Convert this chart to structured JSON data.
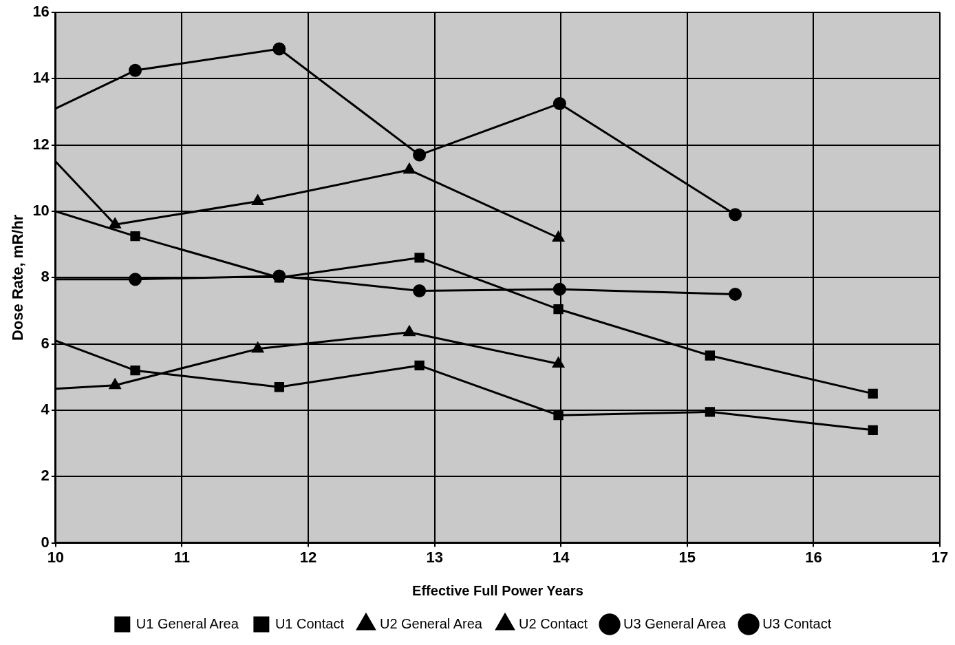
{
  "chart_data": {
    "type": "line",
    "xlabel": "Effective Full Power Years",
    "ylabel": "Dose Rate, mR/hr",
    "xlim": [
      10,
      17
    ],
    "xticks": [
      10,
      11,
      12,
      13,
      14,
      15,
      16,
      17
    ],
    "ylim": [
      0,
      16
    ],
    "yticks": [
      0,
      2,
      4,
      6,
      8,
      10,
      12,
      14,
      16
    ],
    "grid": true,
    "legend": "bottom",
    "line_style": "solid",
    "series": [
      {
        "name": "U1 General Area",
        "color": "#000000",
        "marker": "square",
        "x": [
          10,
          10.63,
          11.77,
          12.88,
          13.98,
          15.18,
          16.47
        ],
        "values": [
          6.1,
          5.2,
          4.7,
          5.35,
          3.85,
          3.95,
          3.4
        ]
      },
      {
        "name": "U1 Contact",
        "color": "#000000",
        "marker": "square",
        "x": [
          10,
          10.63,
          11.77,
          12.88,
          13.98,
          15.18,
          16.47
        ],
        "values": [
          10,
          9.25,
          8,
          8.6,
          7.05,
          5.65,
          4.5
        ]
      },
      {
        "name": "U2 General Area",
        "color": "#000000",
        "marker": "triangle",
        "x": [
          10,
          10.47,
          11.6,
          12.8,
          13.98
        ],
        "values": [
          4.65,
          4.75,
          5.85,
          6.35,
          5.4
        ]
      },
      {
        "name": "U2 Contact",
        "color": "#000000",
        "marker": "triangle",
        "x": [
          10,
          10.47,
          11.6,
          12.8,
          13.98
        ],
        "values": [
          11.5,
          9.6,
          10.3,
          11.25,
          9.2
        ]
      },
      {
        "name": "U3 General Area",
        "color": "#000000",
        "marker": "circle",
        "x": [
          10,
          10.63,
          11.77,
          12.88,
          13.99,
          15.38
        ],
        "values": [
          7.95,
          7.95,
          8.05,
          7.6,
          7.65,
          7.5
        ]
      },
      {
        "name": "U3 Contact",
        "color": "#000000",
        "marker": "circle",
        "x": [
          10,
          10.63,
          11.77,
          12.88,
          13.99,
          15.38
        ],
        "values": [
          13.1,
          14.25,
          14.9,
          11.7,
          13.25,
          9.9
        ]
      }
    ]
  }
}
